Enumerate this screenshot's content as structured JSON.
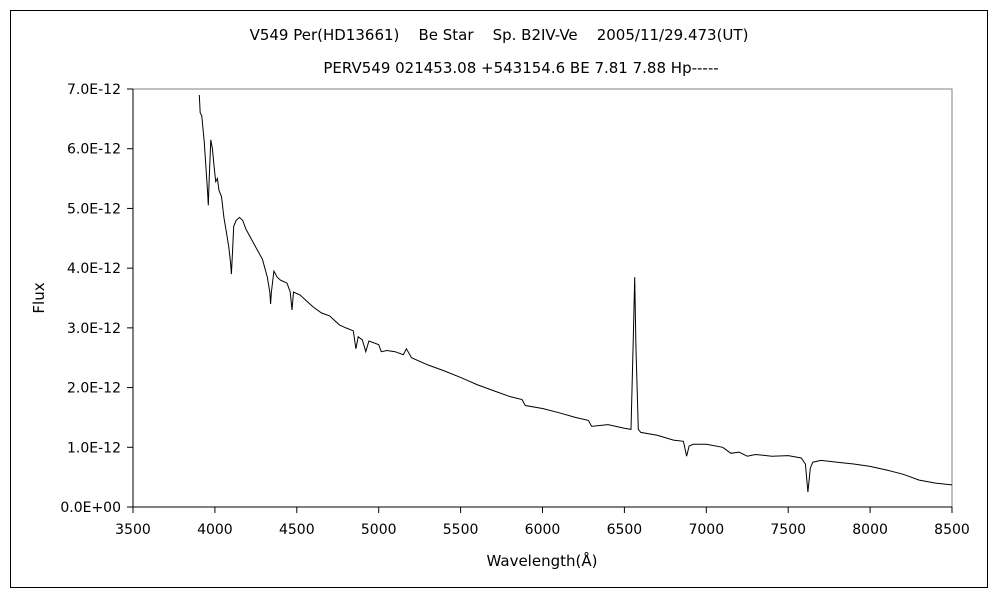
{
  "chart_data": {
    "type": "line",
    "title": "V549 Per(HD13661)    Be Star    Sp. B2IV-Ve    2005/11/29.473(UT)",
    "subtitle": "PERV549 021453.08 +543154.6 BE 7.81 7.88 Hp-----",
    "xlabel": "Wavelength(Å)",
    "ylabel": "Flux",
    "xlim": [
      3500,
      8500
    ],
    "ylim": [
      0,
      7e-12
    ],
    "xticks": [
      "3500",
      "4000",
      "4500",
      "5000",
      "5500",
      "6000",
      "6500",
      "7000",
      "7500",
      "8000",
      "8500"
    ],
    "yticks": [
      "0.0E+00",
      "1.0E-12",
      "2.0E-12",
      "3.0E-12",
      "4.0E-12",
      "5.0E-12",
      "6.0E-12",
      "7.0E-12"
    ],
    "grid": false,
    "legend": "none",
    "series": [
      {
        "x": [
          3905,
          3910,
          3920,
          3935,
          3955,
          3960,
          3965,
          3975,
          3985,
          3995,
          4005,
          4015,
          4025,
          4040,
          4055,
          4070,
          4085,
          4095,
          4101,
          4108,
          4115,
          4130,
          4150,
          4170,
          4190,
          4220,
          4250,
          4290,
          4320,
          4335,
          4340,
          4345,
          4360,
          4380,
          4400,
          4440,
          4460,
          4471,
          4480,
          4520,
          4560,
          4600,
          4650,
          4700,
          4760,
          4800,
          4845,
          4861,
          4875,
          4900,
          4921,
          4940,
          5000,
          5016,
          5050,
          5100,
          5150,
          5169,
          5200,
          5300,
          5400,
          5500,
          5600,
          5700,
          5800,
          5875,
          5895,
          6000,
          6100,
          6200,
          6280,
          6300,
          6400,
          6500,
          6540,
          6555,
          6563,
          6570,
          6585,
          6600,
          6700,
          6800,
          6860,
          6880,
          6895,
          6920,
          7000,
          7100,
          7150,
          7200,
          7250,
          7300,
          7400,
          7500,
          7580,
          7605,
          7620,
          7635,
          7650,
          7700,
          7800,
          7900,
          8000,
          8100,
          8200,
          8300,
          8400,
          8500
        ],
        "y": [
          6.9e-12,
          6.6e-12,
          6.55e-12,
          6.1e-12,
          5.3e-12,
          5.05e-12,
          5.5e-12,
          6.15e-12,
          6e-12,
          5.7e-12,
          5.45e-12,
          5.5e-12,
          5.3e-12,
          5.2e-12,
          4.85e-12,
          4.6e-12,
          4.35e-12,
          4.1e-12,
          3.9e-12,
          4.3e-12,
          4.7e-12,
          4.8e-12,
          4.85e-12,
          4.8e-12,
          4.65e-12,
          4.5e-12,
          4.35e-12,
          4.15e-12,
          3.85e-12,
          3.6e-12,
          3.4e-12,
          3.6e-12,
          3.95e-12,
          3.85e-12,
          3.8e-12,
          3.75e-12,
          3.6e-12,
          3.3e-12,
          3.6e-12,
          3.55e-12,
          3.45e-12,
          3.35e-12,
          3.25e-12,
          3.2e-12,
          3.05e-12,
          3e-12,
          2.95e-12,
          2.65e-12,
          2.85e-12,
          2.8e-12,
          2.6e-12,
          2.78e-12,
          2.72e-12,
          2.6e-12,
          2.62e-12,
          2.6e-12,
          2.55e-12,
          2.65e-12,
          2.5e-12,
          2.38e-12,
          2.28e-12,
          2.17e-12,
          2.05e-12,
          1.95e-12,
          1.85e-12,
          1.8e-12,
          1.7e-12,
          1.65e-12,
          1.58e-12,
          1.5e-12,
          1.45e-12,
          1.35e-12,
          1.38e-12,
          1.32e-12,
          1.3e-12,
          2.9e-12,
          3.85e-12,
          2.7e-12,
          1.3e-12,
          1.25e-12,
          1.2e-12,
          1.12e-12,
          1.1e-12,
          8.5e-13,
          1.02e-12,
          1.05e-12,
          1.05e-12,
          1e-12,
          9e-13,
          9.2e-13,
          8.5e-13,
          8.8e-13,
          8.5e-13,
          8.6e-13,
          8.2e-13,
          7.2e-13,
          2.5e-13,
          6.5e-13,
          7.5e-13,
          7.8e-13,
          7.5e-13,
          7.2e-13,
          6.8e-13,
          6.2e-13,
          5.5e-13,
          4.5e-13,
          4e-13,
          3.7e-13
        ]
      }
    ]
  }
}
